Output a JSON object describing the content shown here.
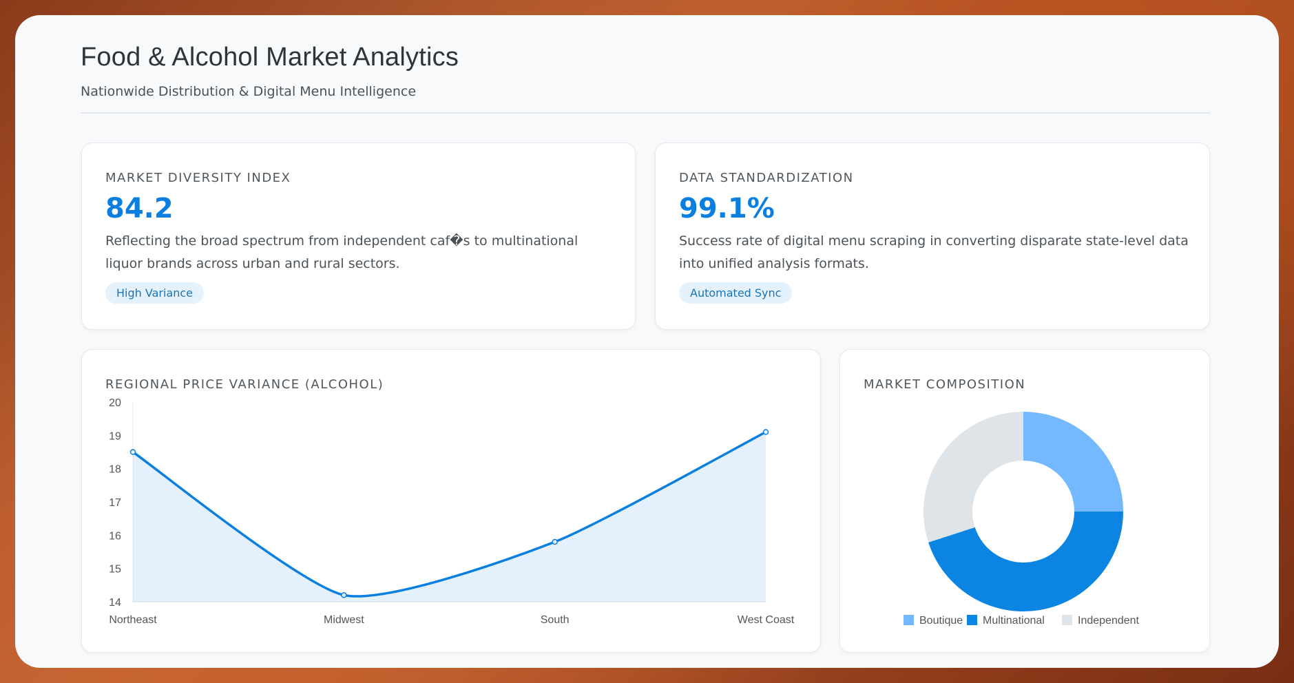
{
  "header": {
    "title": "Food & Alcohol Market Analytics",
    "subtitle": "Nationwide Distribution & Digital Menu Intelligence"
  },
  "cards": [
    {
      "label": "MARKET DIVERSITY INDEX",
      "value": "84.2",
      "description": "Reflecting the broad spectrum from independent caf�s to multinational liquor brands across urban and rural sectors.",
      "badge": "High Variance"
    },
    {
      "label": "DATA STANDARDIZATION",
      "value": "99.1%",
      "description": "Success rate of digital menu scraping in converting disparate state-level data into unified analysis formats.",
      "badge": "Automated Sync"
    }
  ],
  "chart_data": [
    {
      "type": "area",
      "title": "REGIONAL PRICE VARIANCE (ALCOHOL)",
      "categories": [
        "Northeast",
        "Midwest",
        "South",
        "West Coast"
      ],
      "values": [
        18.5,
        14.2,
        15.8,
        19.1
      ],
      "ylim": [
        14,
        20
      ],
      "yticks": [
        14,
        15,
        16,
        17,
        18,
        19,
        20
      ],
      "grid": false,
      "color": "#0b7fe0"
    },
    {
      "type": "pie",
      "title": "MARKET COMPOSITION",
      "labels": [
        "Boutique",
        "Multinational",
        "Independent"
      ],
      "values": [
        25,
        45,
        30
      ],
      "colors": [
        "#74b9ff",
        "#0b84e2",
        "#dfe4e8"
      ],
      "legend": "bottom"
    }
  ]
}
